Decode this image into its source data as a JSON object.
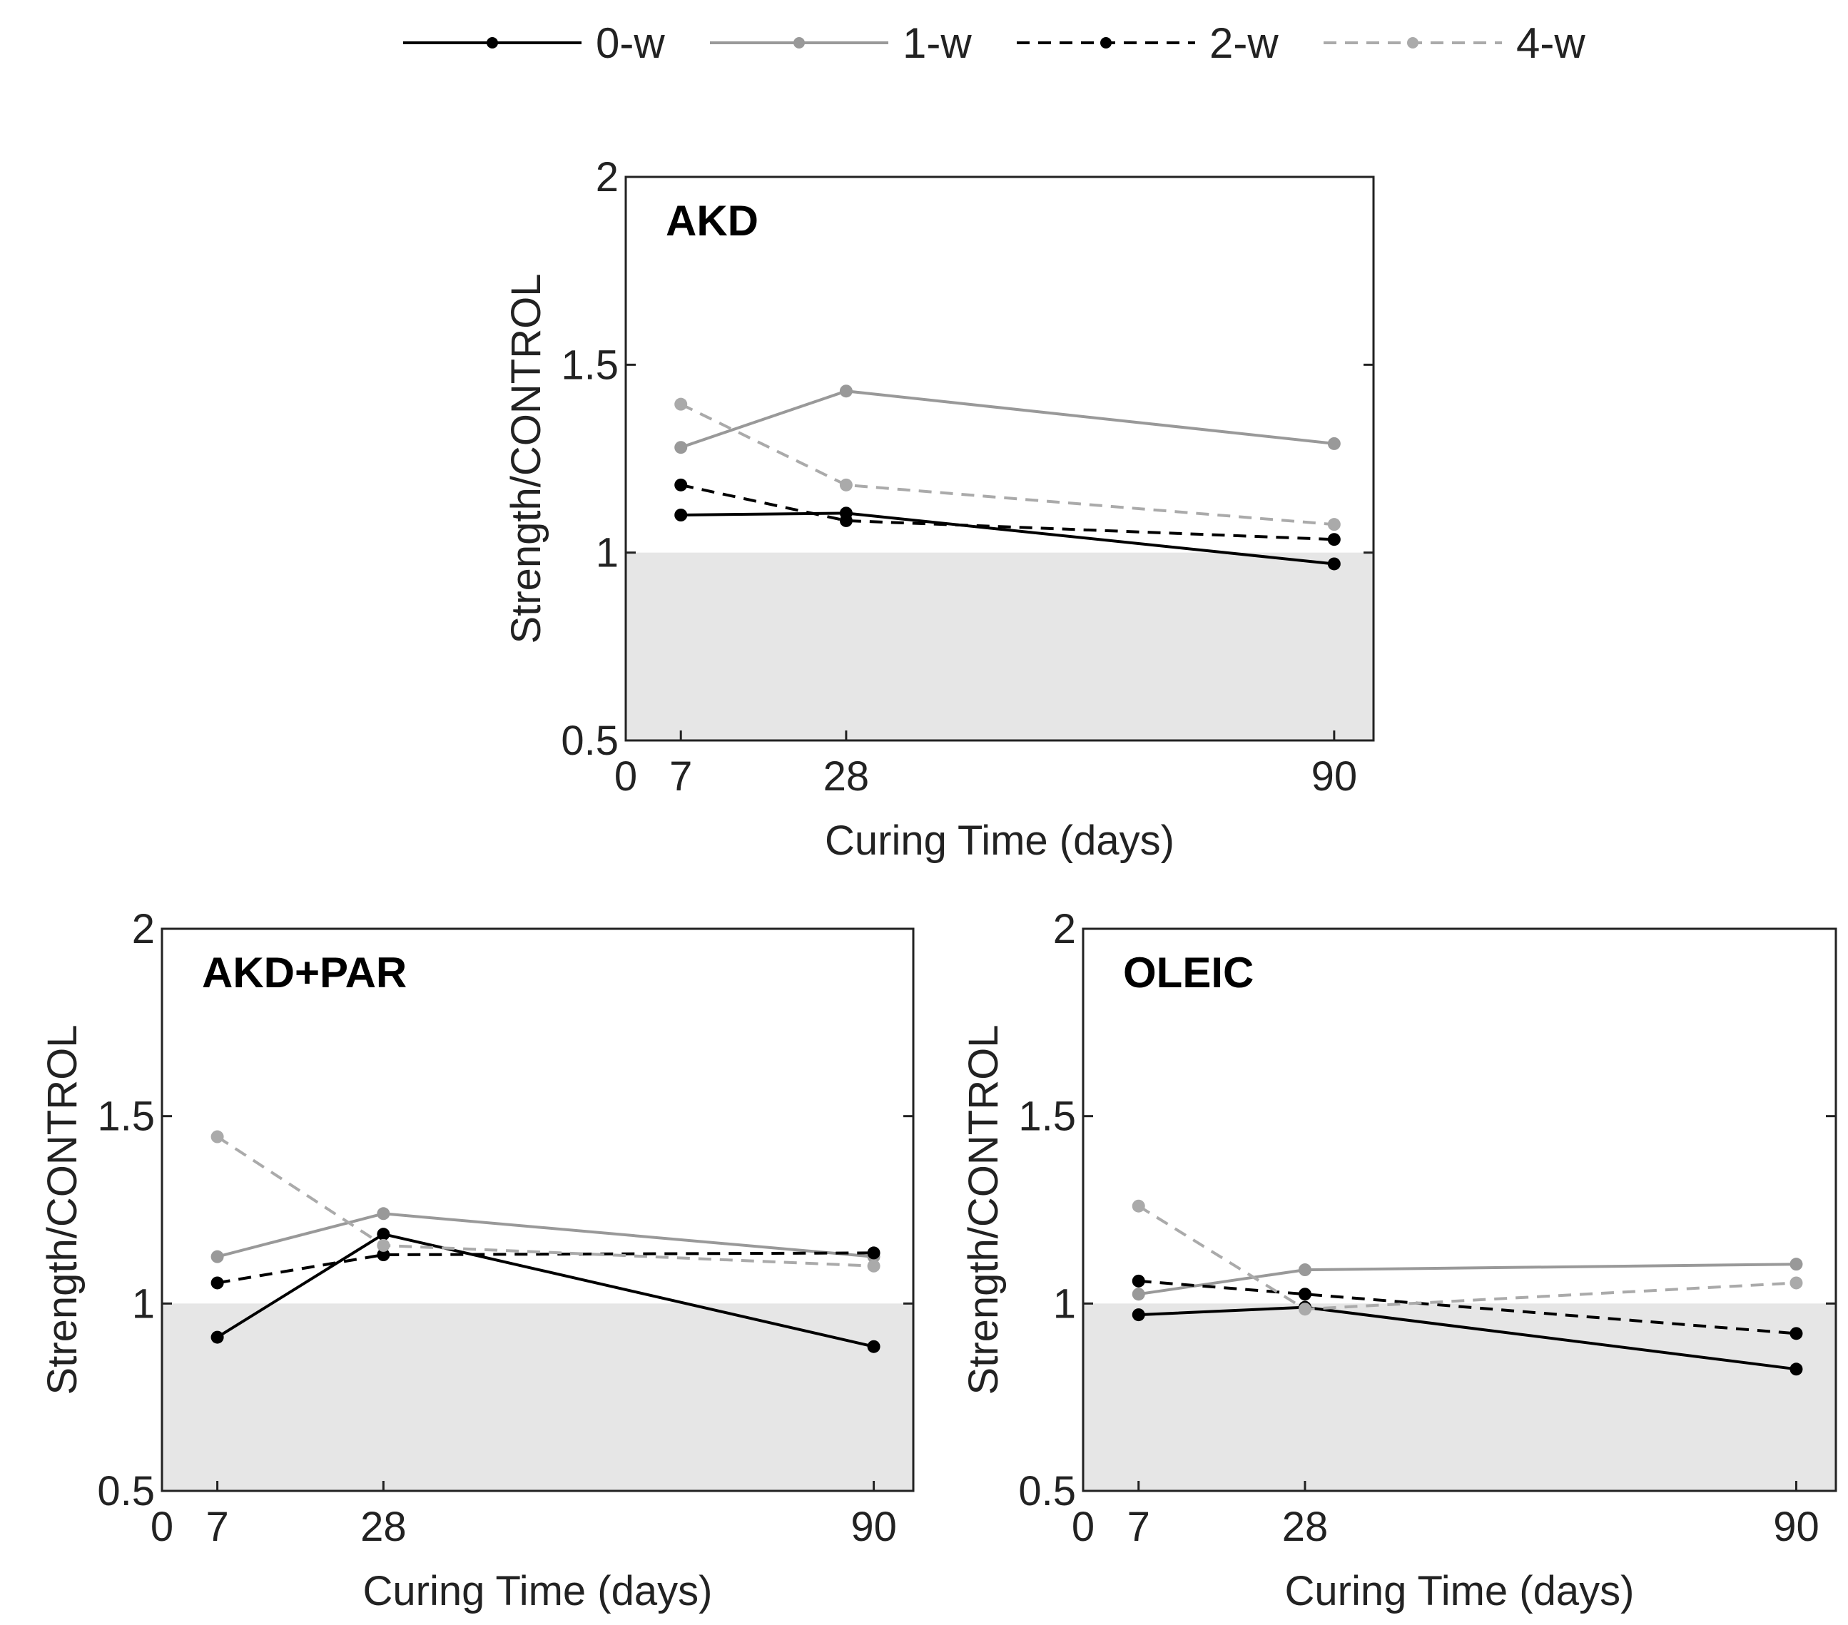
{
  "legend": {
    "entries": [
      {
        "name": "0-w",
        "color": "#000000",
        "dash": false
      },
      {
        "name": "1-w",
        "color": "#999999",
        "dash": false
      },
      {
        "name": "2-w",
        "color": "#000000",
        "dash": true
      },
      {
        "name": "4-w",
        "color": "#aaaaaa",
        "dash": true
      }
    ]
  },
  "shade_color": "#e6e6e6",
  "chart_data": [
    {
      "type": "line",
      "title": "AKD",
      "xlabel": "Curing Time (days)",
      "ylabel": "Strength/CONTROL",
      "xlim": [
        0,
        95
      ],
      "ylim": [
        0.5,
        2
      ],
      "xticks": [
        "0",
        "7",
        "28",
        "90"
      ],
      "yticks": [
        "0.5",
        "1",
        "1.5",
        "2"
      ],
      "shaded_below": 1,
      "x": [
        7,
        28,
        90
      ],
      "series": [
        {
          "name": "0-w",
          "values": [
            1.1,
            1.105,
            0.97
          ]
        },
        {
          "name": "1-w",
          "values": [
            1.28,
            1.43,
            1.29
          ]
        },
        {
          "name": "2-w",
          "values": [
            1.18,
            1.085,
            1.035
          ]
        },
        {
          "name": "4-w",
          "values": [
            1.395,
            1.18,
            1.075
          ]
        }
      ]
    },
    {
      "type": "line",
      "title": "AKD+PAR",
      "xlabel": "Curing Time (days)",
      "ylabel": "Strength/CONTROL",
      "xlim": [
        0,
        95
      ],
      "ylim": [
        0.5,
        2
      ],
      "xticks": [
        "0",
        "7",
        "28",
        "90"
      ],
      "yticks": [
        "0.5",
        "1",
        "1.5",
        "2"
      ],
      "shaded_below": 1,
      "x": [
        7,
        28,
        90
      ],
      "series": [
        {
          "name": "0-w",
          "values": [
            0.91,
            1.185,
            0.885
          ]
        },
        {
          "name": "1-w",
          "values": [
            1.125,
            1.24,
            1.125
          ]
        },
        {
          "name": "2-w",
          "values": [
            1.055,
            1.13,
            1.135
          ]
        },
        {
          "name": "4-w",
          "values": [
            1.445,
            1.155,
            1.1
          ]
        }
      ]
    },
    {
      "type": "line",
      "title": "OLEIC",
      "xlabel": "Curing Time (days)",
      "ylabel": "Strength/CONTROL",
      "xlim": [
        0,
        95
      ],
      "ylim": [
        0.5,
        2
      ],
      "xticks": [
        "0",
        "7",
        "28",
        "90"
      ],
      "yticks": [
        "0.5",
        "1",
        "1.5",
        "2"
      ],
      "shaded_below": 1,
      "x": [
        7,
        28,
        90
      ],
      "series": [
        {
          "name": "0-w",
          "values": [
            0.97,
            0.99,
            0.825
          ]
        },
        {
          "name": "1-w",
          "values": [
            1.025,
            1.09,
            1.105
          ]
        },
        {
          "name": "2-w",
          "values": [
            1.06,
            1.025,
            0.92
          ]
        },
        {
          "name": "4-w",
          "values": [
            1.26,
            0.985,
            1.055
          ]
        }
      ]
    }
  ]
}
